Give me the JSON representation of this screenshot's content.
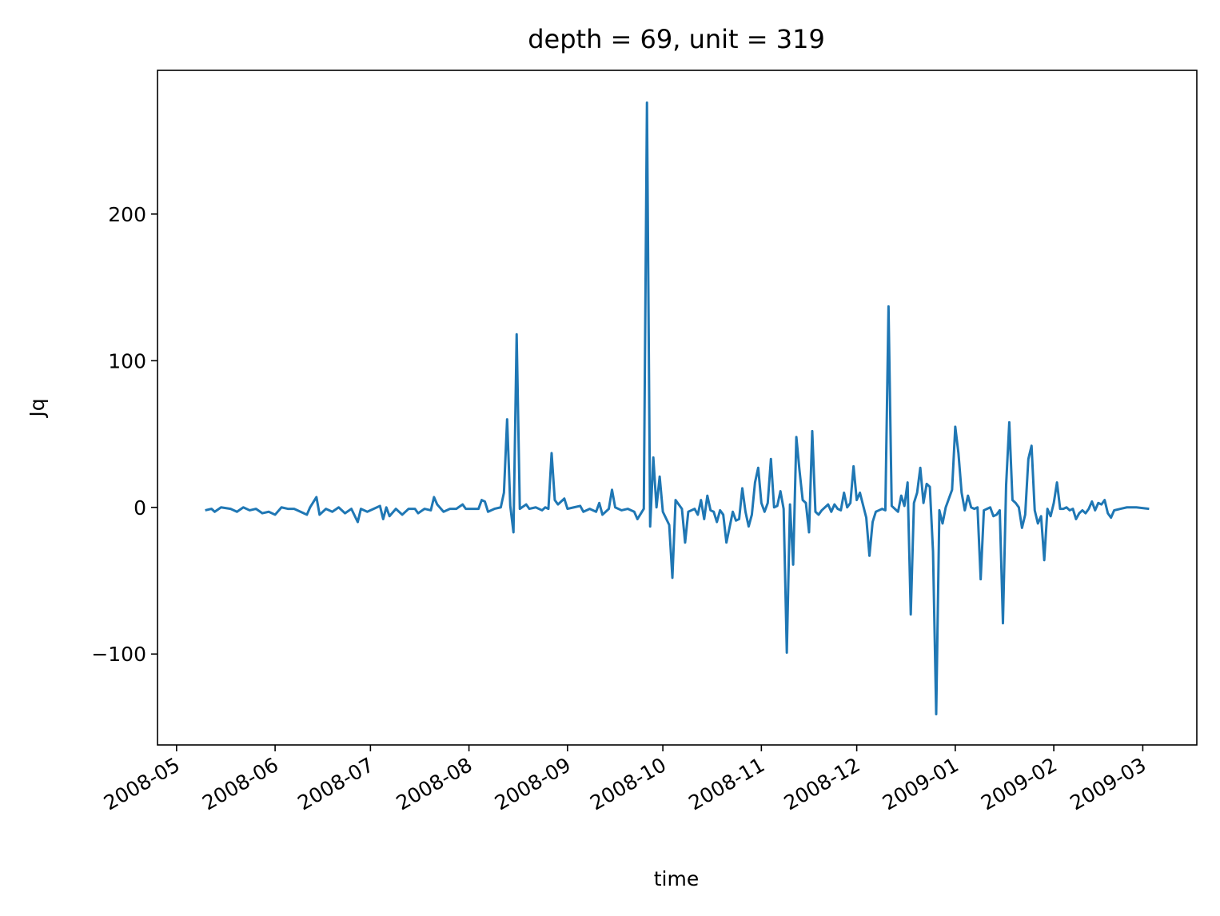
{
  "chart_data": {
    "type": "line",
    "title": "depth = 69, unit = 319",
    "xlabel": "time",
    "ylabel": "Jq",
    "color": "#1f77b4",
    "x": [
      "2008-05-10",
      "2008-05-12",
      "2008-05-13",
      "2008-05-15",
      "2008-05-18",
      "2008-05-20",
      "2008-05-22",
      "2008-05-24",
      "2008-05-26",
      "2008-05-28",
      "2008-05-30",
      "2008-06-01",
      "2008-06-03",
      "2008-06-05",
      "2008-06-07",
      "2008-06-09",
      "2008-06-11",
      "2008-06-12",
      "2008-06-14",
      "2008-06-15",
      "2008-06-17",
      "2008-06-19",
      "2008-06-21",
      "2008-06-23",
      "2008-06-25",
      "2008-06-27",
      "2008-06-28",
      "2008-06-30",
      "2008-07-02",
      "2008-07-04",
      "2008-07-05",
      "2008-07-06",
      "2008-07-07",
      "2008-07-09",
      "2008-07-11",
      "2008-07-13",
      "2008-07-15",
      "2008-07-16",
      "2008-07-18",
      "2008-07-20",
      "2008-07-21",
      "2008-07-22",
      "2008-07-24",
      "2008-07-26",
      "2008-07-28",
      "2008-07-30",
      "2008-07-31",
      "2008-08-02",
      "2008-08-04",
      "2008-08-05",
      "2008-08-06",
      "2008-08-07",
      "2008-08-09",
      "2008-08-11",
      "2008-08-12",
      "2008-08-13",
      "2008-08-14",
      "2008-08-15",
      "2008-08-16",
      "2008-08-17",
      "2008-08-19",
      "2008-08-20",
      "2008-08-22",
      "2008-08-24",
      "2008-08-25",
      "2008-08-26",
      "2008-08-27",
      "2008-08-28",
      "2008-08-29",
      "2008-08-31",
      "2008-09-01",
      "2008-09-03",
      "2008-09-05",
      "2008-09-06",
      "2008-09-08",
      "2008-09-10",
      "2008-09-11",
      "2008-09-12",
      "2008-09-14",
      "2008-09-15",
      "2008-09-16",
      "2008-09-18",
      "2008-09-20",
      "2008-09-22",
      "2008-09-23",
      "2008-09-25",
      "2008-09-26",
      "2008-09-27",
      "2008-09-28",
      "2008-09-29",
      "2008-09-30",
      "2008-10-01",
      "2008-10-03",
      "2008-10-04",
      "2008-10-05",
      "2008-10-07",
      "2008-10-08",
      "2008-10-09",
      "2008-10-11",
      "2008-10-12",
      "2008-10-13",
      "2008-10-14",
      "2008-10-15",
      "2008-10-16",
      "2008-10-17",
      "2008-10-18",
      "2008-10-19",
      "2008-10-20",
      "2008-10-21",
      "2008-10-23",
      "2008-10-24",
      "2008-10-25",
      "2008-10-26",
      "2008-10-27",
      "2008-10-28",
      "2008-10-29",
      "2008-10-30",
      "2008-10-31",
      "2008-11-01",
      "2008-11-02",
      "2008-11-03",
      "2008-11-04",
      "2008-11-05",
      "2008-11-06",
      "2008-11-07",
      "2008-11-08",
      "2008-11-09",
      "2008-11-10",
      "2008-11-11",
      "2008-11-12",
      "2008-11-13",
      "2008-11-14",
      "2008-11-15",
      "2008-11-16",
      "2008-11-17",
      "2008-11-18",
      "2008-11-19",
      "2008-11-20",
      "2008-11-22",
      "2008-11-23",
      "2008-11-24",
      "2008-11-25",
      "2008-11-26",
      "2008-11-27",
      "2008-11-28",
      "2008-11-29",
      "2008-11-30",
      "2008-12-01",
      "2008-12-02",
      "2008-12-04",
      "2008-12-05",
      "2008-12-06",
      "2008-12-07",
      "2008-12-08",
      "2008-12-09",
      "2008-12-10",
      "2008-12-11",
      "2008-12-12",
      "2008-12-13",
      "2008-12-14",
      "2008-12-15",
      "2008-12-16",
      "2008-12-17",
      "2008-12-18",
      "2008-12-19",
      "2008-12-20",
      "2008-12-21",
      "2008-12-22",
      "2008-12-23",
      "2008-12-24",
      "2008-12-25",
      "2008-12-26",
      "2008-12-27",
      "2008-12-28",
      "2008-12-29",
      "2008-12-31",
      "2009-01-01",
      "2009-01-02",
      "2009-01-03",
      "2009-01-04",
      "2009-01-05",
      "2009-01-06",
      "2009-01-07",
      "2009-01-08",
      "2009-01-09",
      "2009-01-10",
      "2009-01-11",
      "2009-01-12",
      "2009-01-13",
      "2009-01-14",
      "2009-01-15",
      "2009-01-16",
      "2009-01-17",
      "2009-01-18",
      "2009-01-19",
      "2009-01-20",
      "2009-01-21",
      "2009-01-22",
      "2009-01-23",
      "2009-01-24",
      "2009-01-25",
      "2009-01-26",
      "2009-01-27",
      "2009-01-28",
      "2009-01-29",
      "2009-01-30",
      "2009-01-31",
      "2009-02-01",
      "2009-02-02",
      "2009-02-03",
      "2009-02-04",
      "2009-02-05",
      "2009-02-06",
      "2009-02-07",
      "2009-02-08",
      "2009-02-09",
      "2009-02-10",
      "2009-02-11",
      "2009-02-12",
      "2009-02-13",
      "2009-02-14",
      "2009-02-15",
      "2009-02-16",
      "2009-02-17",
      "2009-02-18",
      "2009-02-19",
      "2009-02-20",
      "2009-02-22",
      "2009-02-24",
      "2009-02-27",
      "2009-03-03"
    ],
    "values": [
      -2,
      -1,
      -3,
      0,
      -1,
      -3,
      0,
      -2,
      -1,
      -4,
      -3,
      -5,
      0,
      -1,
      -1,
      -3,
      -5,
      0,
      7,
      -5,
      -1,
      -3,
      0,
      -4,
      -1,
      -10,
      -1,
      -3,
      -1,
      1,
      -8,
      0,
      -6,
      -1,
      -5,
      -1,
      -1,
      -4,
      -1,
      -2,
      7,
      2,
      -3,
      -1,
      -1,
      2,
      -1,
      -1,
      -1,
      5,
      4,
      -3,
      -1,
      0,
      10,
      60,
      1,
      -17,
      118,
      -1,
      2,
      -1,
      0,
      -2,
      0,
      -1,
      37,
      5,
      2,
      6,
      -1,
      0,
      1,
      -3,
      -1,
      -3,
      3,
      -5,
      -1,
      12,
      0,
      -2,
      -1,
      -3,
      -8,
      -1,
      276,
      -13,
      34,
      0,
      21,
      -3,
      -12,
      -48,
      5,
      -1,
      -24,
      -3,
      -1,
      -5,
      5,
      -8,
      8,
      -2,
      -3,
      -10,
      -2,
      -5,
      -24,
      -3,
      -9,
      -8,
      13,
      -3,
      -13,
      -5,
      17,
      27,
      3,
      -3,
      3,
      33,
      0,
      1,
      11,
      -1,
      -99,
      2,
      -39,
      48,
      25,
      5,
      3,
      -17,
      52,
      -3,
      -5,
      -2,
      2,
      -3,
      2,
      -1,
      -2,
      10,
      0,
      3,
      28,
      5,
      10,
      -7,
      -33,
      -10,
      -3,
      -2,
      -1,
      -2,
      137,
      1,
      -1,
      -3,
      8,
      1,
      17,
      -73,
      3,
      10,
      27,
      3,
      16,
      14,
      -30,
      -141,
      -2,
      -11,
      0,
      12,
      55,
      37,
      10,
      -2,
      8,
      0,
      -1,
      0,
      -49,
      -2,
      -1,
      0,
      -6,
      -5,
      -2,
      -79,
      15,
      58,
      5,
      3,
      0,
      -14,
      -5,
      33,
      42,
      -2,
      -11,
      -6,
      -36,
      -1,
      -6,
      3,
      17,
      -1,
      -1,
      0,
      -2,
      -1,
      -8,
      -4,
      -2,
      -4,
      -1,
      4,
      -2,
      3,
      2,
      5,
      -4,
      -7,
      -2,
      -1,
      0,
      0,
      -1
    ],
    "xlim": [
      "2008-04-25",
      "2009-03-18"
    ],
    "xticks": [
      "2008-05",
      "2008-06",
      "2008-07",
      "2008-08",
      "2008-09",
      "2008-10",
      "2008-11",
      "2008-12",
      "2009-01",
      "2009-02",
      "2009-03"
    ],
    "ylim": [
      -162,
      298
    ],
    "yticks": [
      {
        "value": -100,
        "label": "−100"
      },
      0,
      100,
      200
    ]
  }
}
